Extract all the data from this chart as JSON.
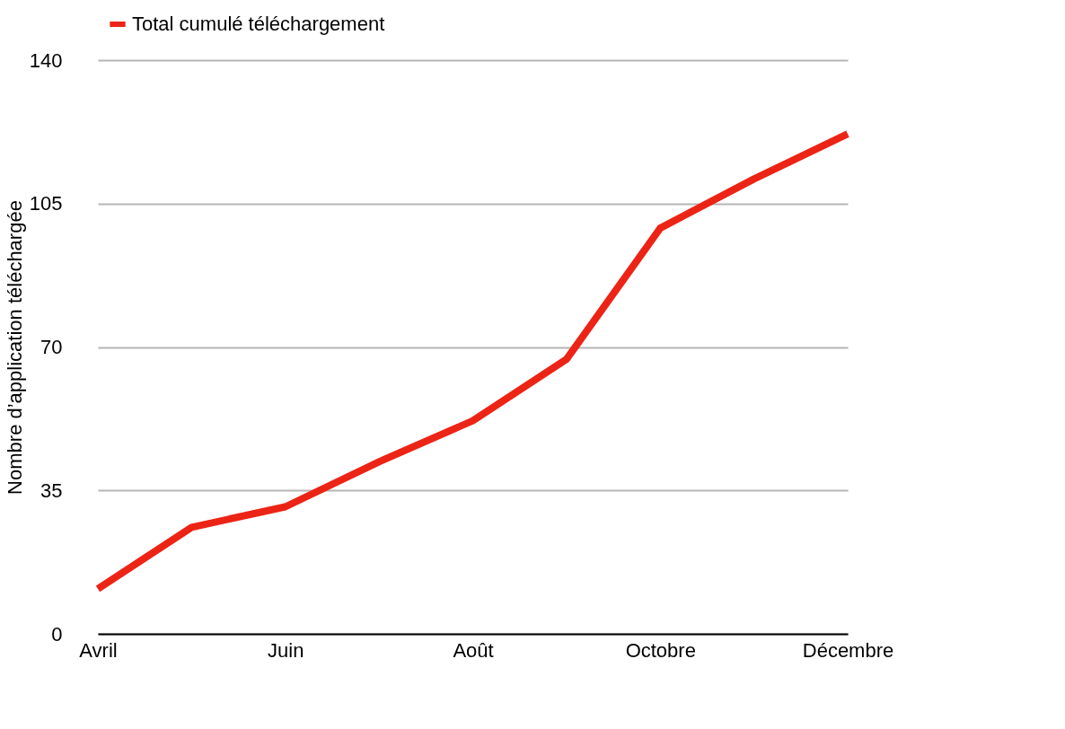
{
  "chart_data": {
    "type": "line",
    "ylabel": "Nombre d’application téléchargée",
    "categories": [
      "Avril",
      null,
      "Juin",
      null,
      "Août",
      null,
      "Octobre",
      null,
      "Décembre"
    ],
    "series": [
      {
        "name": "Total cumulé téléchargement",
        "color": "#ec2416",
        "values": [
          11,
          26,
          31,
          42,
          52,
          67,
          99,
          111,
          122
        ]
      }
    ],
    "ylim": [
      0,
      140
    ],
    "yticks": [
      0,
      35,
      70,
      105,
      140
    ],
    "grid": "y",
    "legend": "top",
    "marker": "none",
    "line_style": "solid"
  }
}
